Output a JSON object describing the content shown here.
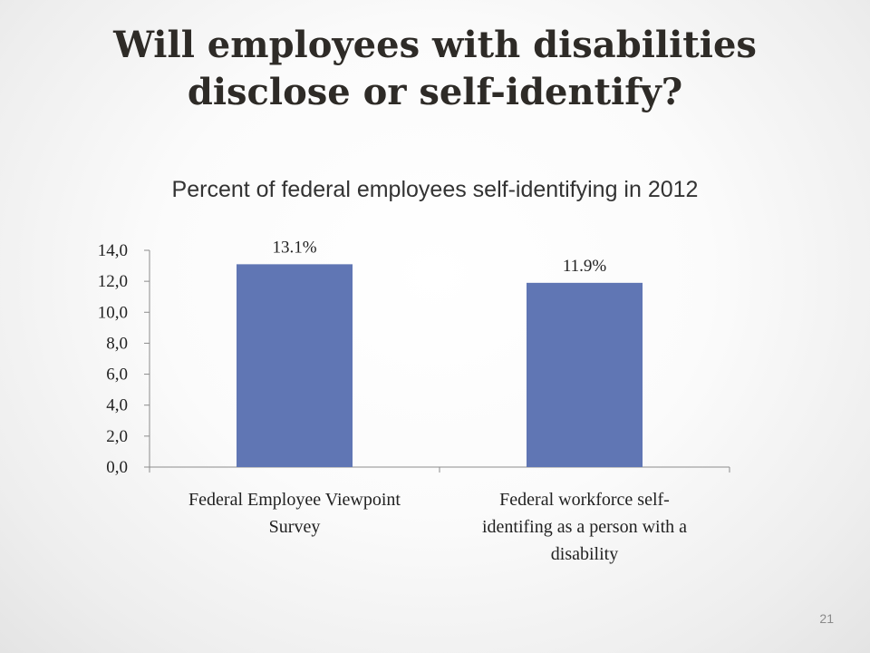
{
  "slide": {
    "title_line1": "Will employees with disabilities",
    "title_line2": "disclose or self-identify?",
    "page_number": "21"
  },
  "chart_data": {
    "type": "bar",
    "title": "Percent of federal employees self-identifying in 2012",
    "categories": [
      [
        "Federal Employee Viewpoint",
        "Survey"
      ],
      [
        "Federal workforce self-",
        "identifing as a person with a",
        "disability"
      ]
    ],
    "values": [
      13.1,
      11.9
    ],
    "data_labels": [
      "13.1%",
      "11.9%"
    ],
    "ylim": [
      0,
      14
    ],
    "y_ticks": [
      0,
      2,
      4,
      6,
      8,
      10,
      12,
      14
    ],
    "y_tick_labels": [
      "0,0",
      "2,0",
      "4,0",
      "6,0",
      "8,0",
      "10,0",
      "12,0",
      "14,0"
    ],
    "xlabel": "",
    "ylabel": "",
    "grid": false,
    "legend": "none",
    "colors": {
      "bar": "#6076b4",
      "axis": "#8c8c8c"
    }
  }
}
